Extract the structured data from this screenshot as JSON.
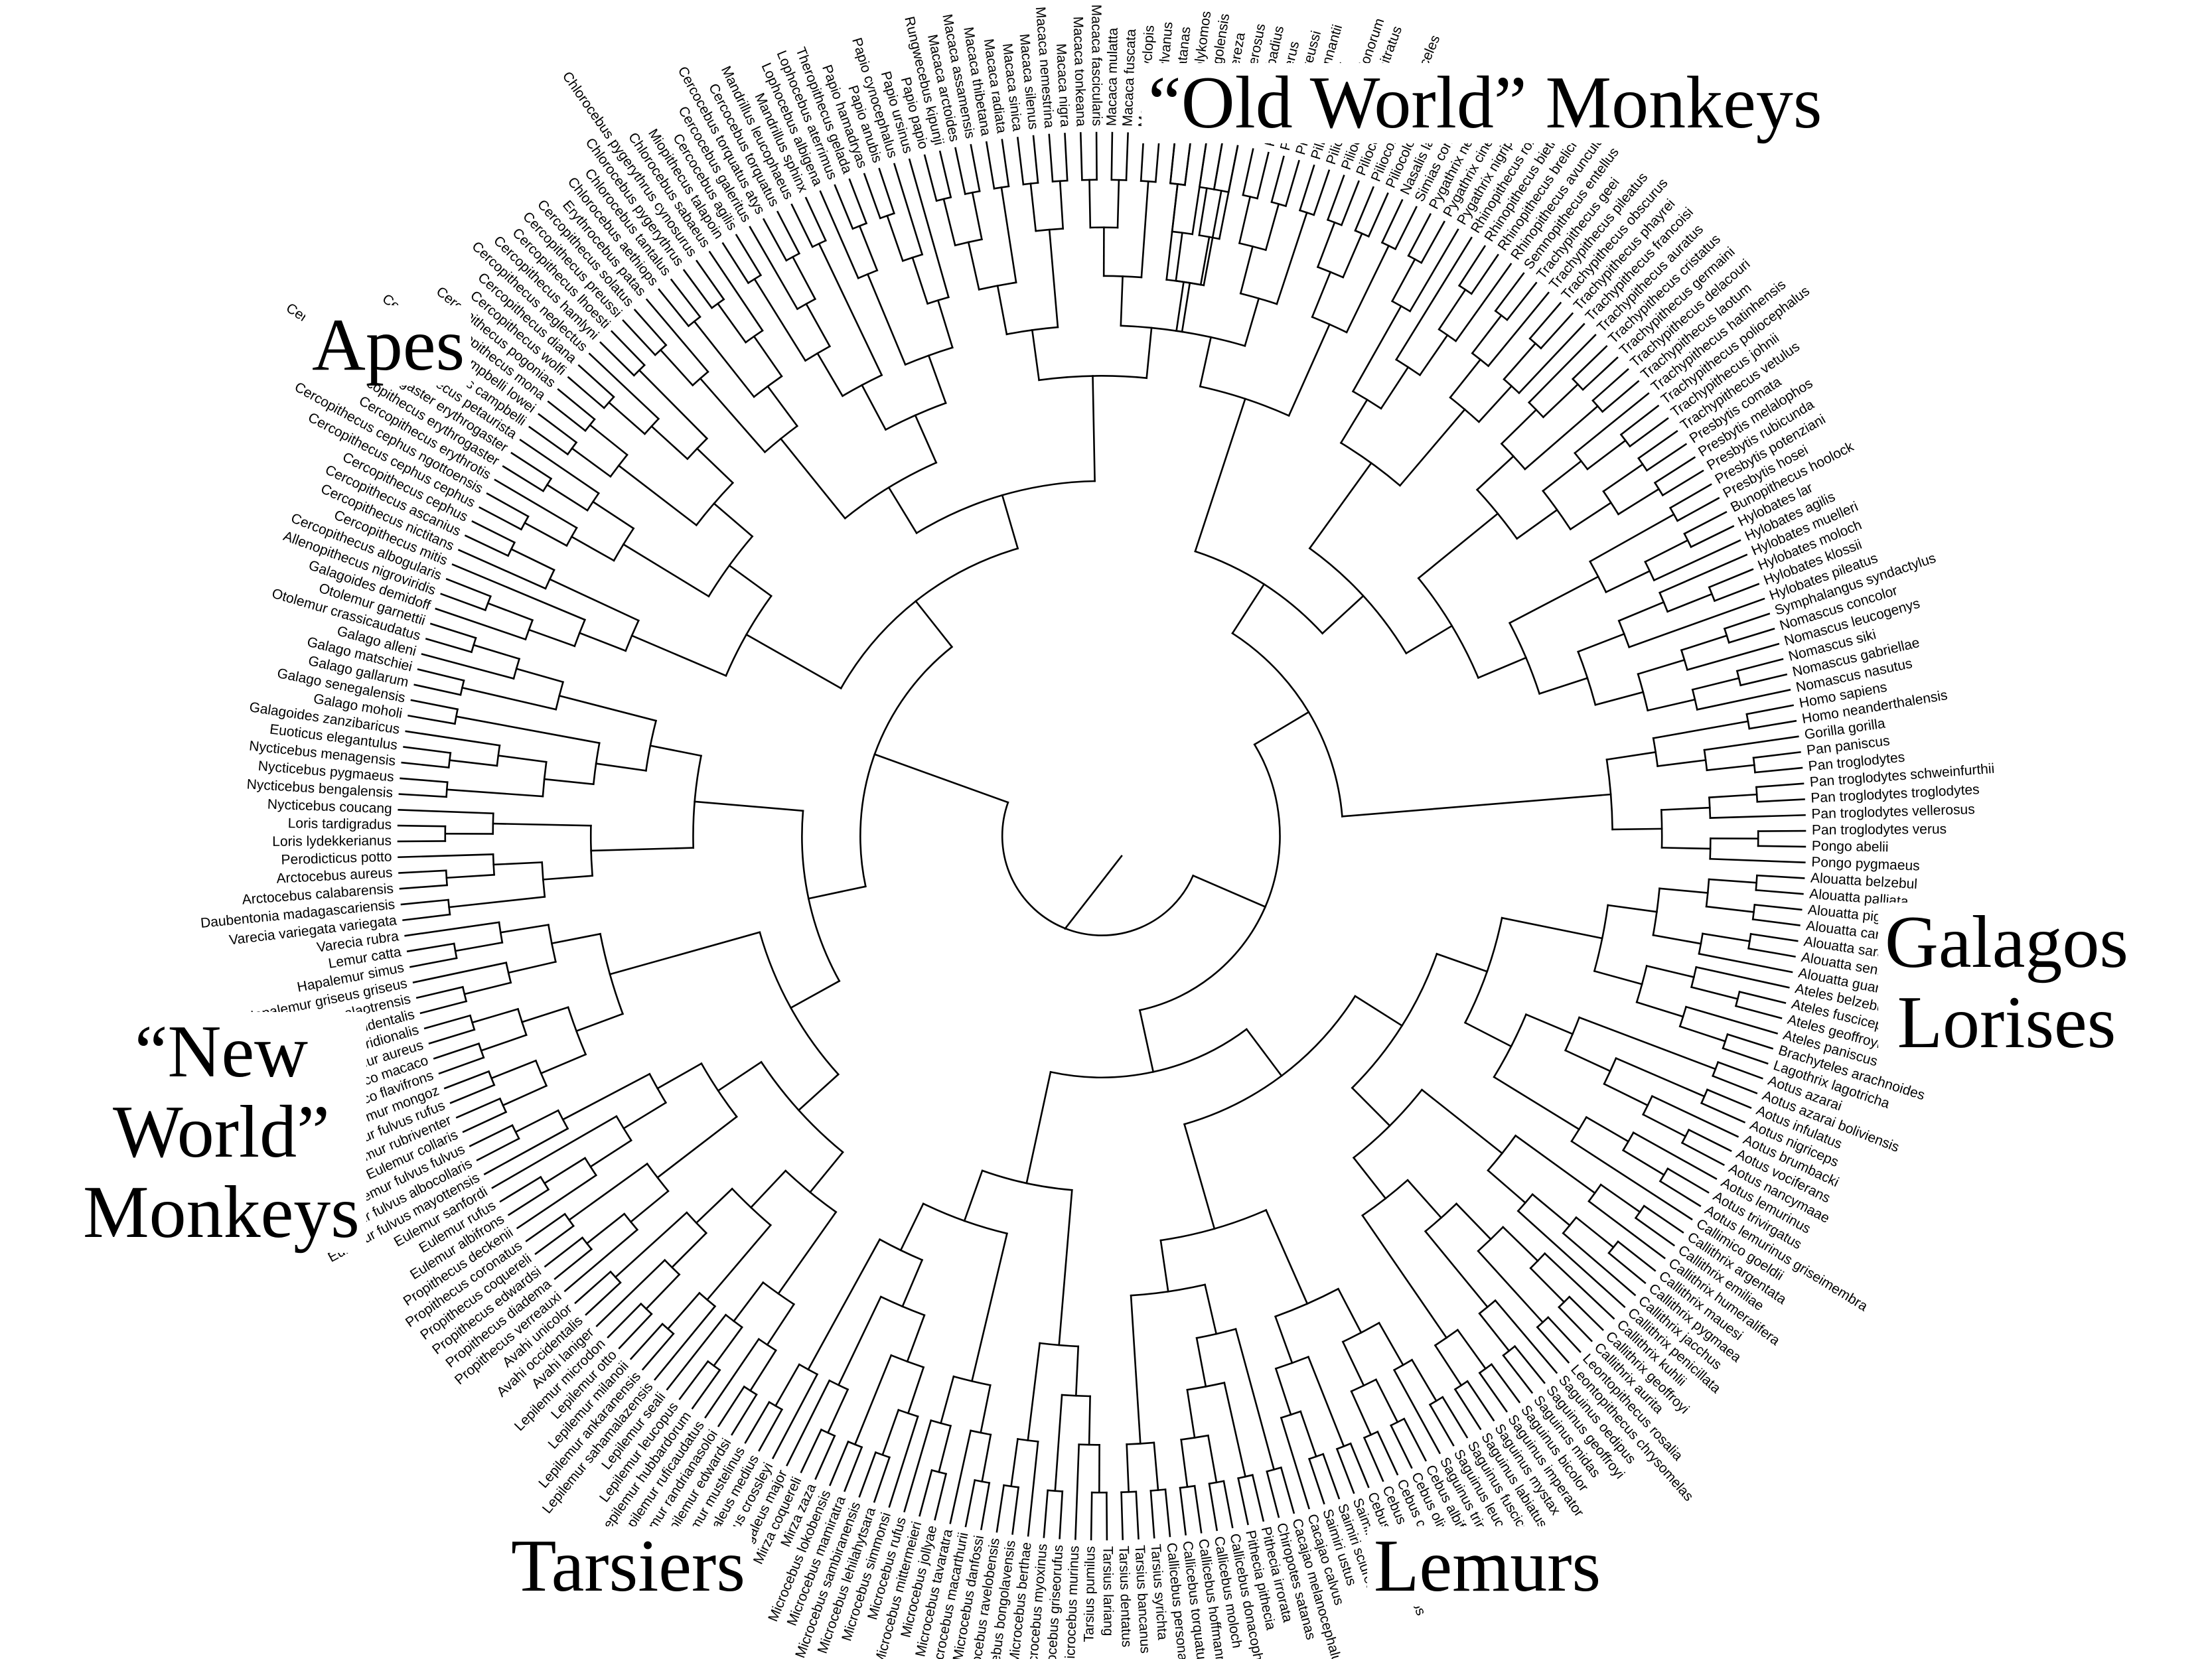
{
  "groups": {
    "old_world": "“Old World” Monkeys",
    "apes": "Apes",
    "new_world": [
      "“New",
      "World”",
      "Monkeys"
    ],
    "galagos_lorises": [
      "Galagos",
      "Lorises"
    ],
    "tarsiers": "Tarsiers",
    "lemurs": "Lemurs"
  },
  "tips": [
    "Colobus satanas",
    "Colobus polykomos",
    "Colobus angolensis",
    "Colobus guereza",
    "Colobus vellerosus",
    "Piliocolobus badius",
    "Procolobus verus",
    "Piliocolobus preussi",
    "Piliocolobus pennantii",
    "Piliocolobus foai",
    "Piliocolobus gordonorum",
    "Piliocolobus rufomitratus",
    "Piliocolobus kirkii",
    "Piliocolobus tephrosceles",
    "Piliocolobus tholloni",
    "Nasalis larvatus",
    "Simias concolor",
    "Pygathrix nemaeus",
    "Pygathrix cinerea",
    "Pygathrix nigripes",
    "Rhinopithecus roxellana",
    "Rhinopithecus bieti",
    "Rhinopithecus brelichi",
    "Rhinopithecus avunculus",
    "Semnopithecus entellus",
    "Trachypithecus geei",
    "Trachypithecus pileatus",
    "Trachypithecus obscurus",
    "Trachypithecus phayrei",
    "Trachypithecus francoisi",
    "Trachypithecus auratus",
    "Trachypithecus cristatus",
    "Trachypithecus germaini",
    "Trachypithecus delacouri",
    "Trachypithecus laotum",
    "Trachypithecus hatinhensis",
    "Trachypithecus poliocephalus",
    "Trachypithecus johnii",
    "Trachypithecus vetulus",
    "Presbytis comata",
    "Presbytis melalophos",
    "Presbytis rubicunda",
    "Presbytis potenziani",
    "Presbytis hosei",
    "Bunopithecus hoolock",
    "Hylobates lar",
    "Hylobates agilis",
    "Hylobates muelleri",
    "Hylobates moloch",
    "Hylobates klossii",
    "Hylobates pileatus",
    "Symphalangus syndactylus",
    "Nomascus concolor",
    "Nomascus leucogenys",
    "Nomascus siki",
    "Nomascus gabriellae",
    "Nomascus nasutus",
    "Homo sapiens",
    "Homo neanderthalensis",
    "Gorilla gorilla",
    "Pan paniscus",
    "Pan troglodytes",
    "Pan troglodytes schweinfurthii",
    "Pan troglodytes troglodytes",
    "Pan troglodytes vellerosus",
    "Pan troglodytes verus",
    "Pongo abelii",
    "Pongo pygmaeus",
    "Alouatta belzebul",
    "Alouatta palliata",
    "Alouatta pigra",
    "Alouatta caraya",
    "Alouatta sara",
    "Alouatta seniculus",
    "Alouatta guariba",
    "Ateles belzebuth",
    "Ateles fusciceps",
    "Ateles geoffroyi",
    "Ateles paniscus",
    "Brachyteles arachnoides",
    "Lagothrix lagotricha",
    "Aotus azarai",
    "Aotus azarai boliviensis",
    "Aotus infulatus",
    "Aotus nigriceps",
    "Aotus brumbacki",
    "Aotus vociferans",
    "Aotus nancymaae",
    "Aotus lemurinus",
    "Aotus trivirgatus",
    "Aotus lemurinus griseimembra",
    "Callimico goeldii",
    "Callithrix argentata",
    "Callithrix emiliae",
    "Callithrix humeralifera",
    "Callithrix mauesi",
    "Callithrix pygmaea",
    "Callithrix jacchus",
    "Callithrix penicillata",
    "Callithrix kuhlii",
    "Callithrix geoffroyi",
    "Callithrix aurita",
    "Leontopithecus rosalia",
    "Leontopithecus chrysomelas",
    "Saguinus oedipus",
    "Saguinus geoffroyi",
    "Saguinus midas",
    "Saguinus bicolor",
    "Saguinus imperator",
    "Saguinus mystax",
    "Saguinus labiatus",
    "Saguinus fuscicollis",
    "Saguinus leucopus",
    "Saguinus tripartitus",
    "Cebus albifrons",
    "Cebus olivaceus",
    "Cebus capucinus",
    "Cebus apella",
    "Cebus xanthosternos",
    "Saimiri boliviensis",
    "Saimiri sciureus",
    "Saimiri ustus",
    "Cacajao calvus",
    "Cacajao melanocephalus",
    "Chiropotes satanas",
    "Pithecia irrorata",
    "Pithecia pithecia",
    "Callicebus donacophilus",
    "Callicebus moloch",
    "Callicebus hoffmannsi",
    "Callicebus torquatus",
    "Callicebus personatus",
    "Tarsius syrichta",
    "Tarsius bancanus",
    "Tarsius dentatus",
    "Tarsius lariang",
    "Tarsius pumilus",
    "Microcebus murinus",
    "Microcebus griseorufus",
    "Microcebus myoxinus",
    "Microcebus berthae",
    "Microcebus bongolavensis",
    "Microcebus ravelobensis",
    "Microcebus danfossi",
    "Microcebus macarthurii",
    "Microcebus tavaratra",
    "Microcebus jollyae",
    "Microcebus mittermeieri",
    "Microcebus rufus",
    "Microcebus simmonsi",
    "Microcebus lehilahytsara",
    "Microcebus sambiranensis",
    "Microcebus mamiratra",
    "Microcebus lokobensis",
    "Mirza zaza",
    "Mirza coquereli",
    "Cheirogaleus major",
    "Cheirogaleus crossleyi",
    "Cheirogaleus medius",
    "Lepilemur mustelinus",
    "Lepilemur edwardsi",
    "Lepilemur randrianasoloi",
    "Lepilemur ruficaudatus",
    "Lepilemur hubbardorum",
    "Lepilemur leucopus",
    "Lepilemur seali",
    "Lepilemur sahamalazensis",
    "Lepilemur ankaranensis",
    "Lepilemur milanoii",
    "Lepilemur otto",
    "Lepilemur microdon",
    "Avahi laniger",
    "Avahi occidentalis",
    "Avahi unicolor",
    "Propithecus verreauxi",
    "Propithecus diadema",
    "Propithecus edwardsi",
    "Propithecus coquereli",
    "Propithecus coronatus",
    "Propithecus deckenii",
    "Eulemur albifrons",
    "Eulemur rufus",
    "Eulemur sanfordi",
    "Eulemur fulvus mayottensis",
    "Eulemur fulvus albocollaris",
    "Eulemur fulvus fulvus",
    "Eulemur collaris",
    "Eulemur rubriventer",
    "Eulemur fulvus rufus",
    "Eulemur mongoz",
    "Eulemur macaco flavifrons",
    "Eulemur macaco macaco",
    "Hapalemur aureus",
    "Hapalemur griseus meridionalis",
    "Hapalemur griseus occidentalis",
    "Hapalemur alaotrensis",
    "Hapalemur griseus griseus",
    "Hapalemur simus",
    "Lemur catta",
    "Varecia rubra",
    "Varecia variegata variegata",
    "Daubentonia madagascariensis",
    "Arctocebus calabarensis",
    "Arctocebus aureus",
    "Perodicticus potto",
    "Loris lydekkerianus",
    "Loris tardigradus",
    "Nycticebus coucang",
    "Nycticebus bengalensis",
    "Nycticebus pygmaeus",
    "Nycticebus menagensis",
    "Euoticus elegantulus",
    "Galagoides zanzibaricus",
    "Galago moholi",
    "Galago senegalensis",
    "Galago gallarum",
    "Galago matschiei",
    "Galago alleni",
    "Otolemur crassicaudatus",
    "Otolemur garnettii",
    "Galagoides demidoff",
    "Allenopithecus nigroviridis",
    "Cercopithecus albogularis",
    "Cercopithecus mitis",
    "Cercopithecus nictitans",
    "Cercopithecus ascanius",
    "Cercopithecus cephus",
    "Cercopithecus cephus cephus",
    "Cercopithecus cephus ngottoensis",
    "Cercopithecus erythrotis",
    "Cercopithecus erythrogaster",
    "Cercopithecus erythrogaster erythrogaster",
    "Cercopithecus petaurista",
    "Cercopithecus campbelli",
    "Cercopithecus campbelli lowei",
    "Cercopithecus mona",
    "Cercopithecus pogonias",
    "Cercopithecus wolfi",
    "Cercopithecus diana",
    "Cercopithecus neglectus",
    "Cercopithecus hamlyni",
    "Cercopithecus lhoesti",
    "Cercopithecus preussi",
    "Cercopithecus solatus",
    "Erythrocebus patas",
    "Chlorocebus aethiops",
    "Chlorocebus tantalus",
    "Chlorocebus pygerythrus",
    "Chlorocebus pygerythrus cynosurus",
    "Chlorocebus sabaeus",
    "Miopithecus talapoin",
    "Cercocebus agilis",
    "Cercocebus galeritus",
    "Cercocebus torquatus atys",
    "Cercocebus torquatus",
    "Mandrillus leucophaeus",
    "Mandrillus sphinx",
    "Lophocebus albigena",
    "Lophocebus aterrimus",
    "Theropithecus gelada",
    "Papio hamadryas",
    "Papio anubis",
    "Papio cynocephalus",
    "Papio ursinus",
    "Papio papio",
    "Rungwecebus kipunji",
    "Macaca arctoides",
    "Macaca assamensis",
    "Macaca thibetana",
    "Macaca radiata",
    "Macaca sinica",
    "Macaca silenus",
    "Macaca nemestrina",
    "Macaca nigra",
    "Macaca tonkeana",
    "Macaca fascicularis",
    "Macaca mulatta",
    "Macaca fuscata",
    "Macaca cyclopis",
    "Macaca sylvanus"
  ]
}
